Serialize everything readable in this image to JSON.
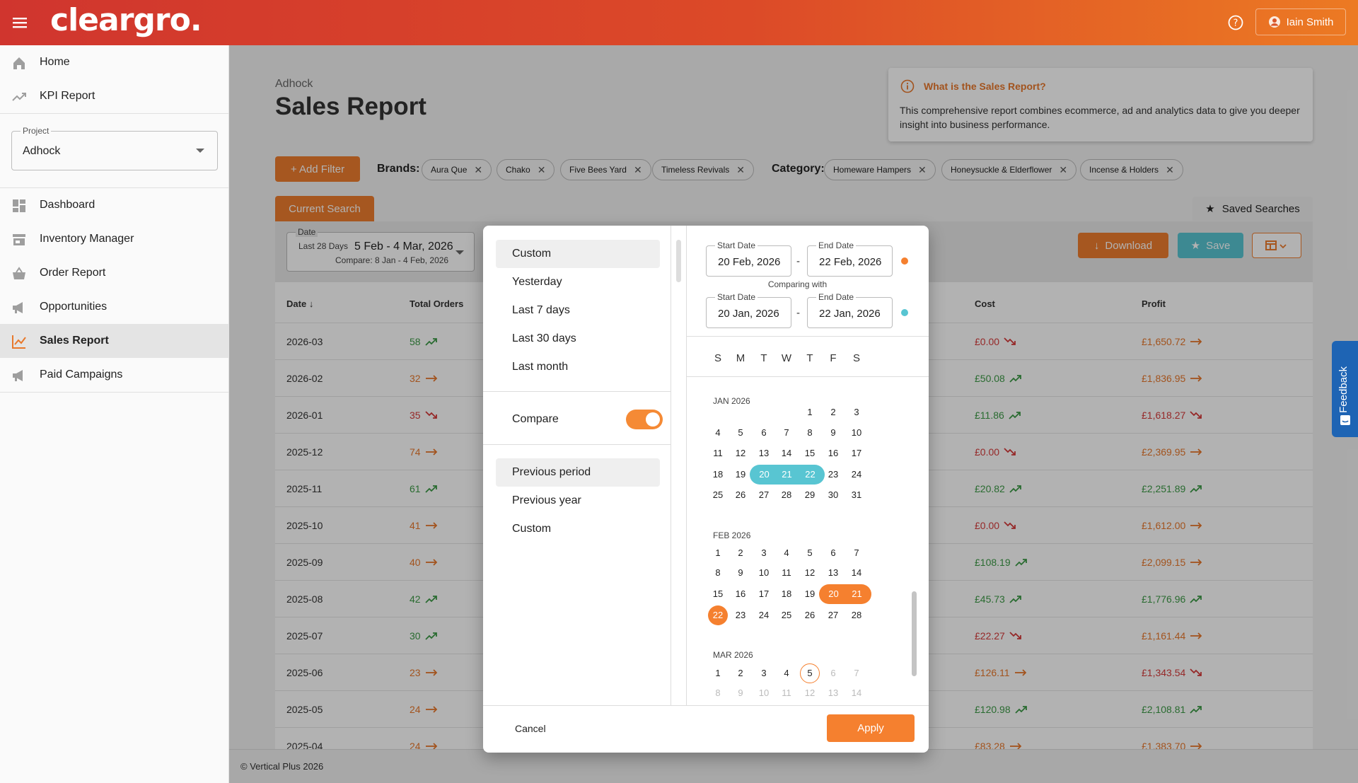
{
  "header": {
    "logo": "cleargro.",
    "user_name": "Iain Smith"
  },
  "sidebar": {
    "items_top": [
      {
        "label": "Home",
        "icon": "home-icon"
      },
      {
        "label": "KPI Report",
        "icon": "trending-up-icon"
      }
    ],
    "project": {
      "legend": "Project",
      "value": "Adhock"
    },
    "items": [
      {
        "label": "Dashboard",
        "icon": "dashboard-icon"
      },
      {
        "label": "Inventory Manager",
        "icon": "store-icon"
      },
      {
        "label": "Order Report",
        "icon": "basket-icon"
      },
      {
        "label": "Opportunities",
        "icon": "megaphone-icon"
      },
      {
        "label": "Sales Report",
        "icon": "chart-line-icon",
        "active": true
      },
      {
        "label": "Paid Campaigns",
        "icon": "megaphone-icon"
      }
    ]
  },
  "page": {
    "breadcrumb": "Adhock",
    "title": "Sales Report"
  },
  "info": {
    "title": "What is the Sales Report?",
    "text": "This comprehensive report combines ecommerce, ad and analytics data to give you deeper insight into business performance."
  },
  "filters": {
    "add_filter": "+ Add Filter",
    "brands_label": "Brands:",
    "brands": [
      "Aura Que",
      "Chako",
      "Five Bees Yard",
      "Timeless Revivals"
    ],
    "category_label": "Category:",
    "categories": [
      "Homeware Hampers",
      "Honeysuckle & Elderflower",
      "Incense & Holders"
    ]
  },
  "tabs": {
    "current": "Current Search",
    "saved": "Saved Searches"
  },
  "date_select": {
    "legend": "Date",
    "preset": "Last 28 Days",
    "range": "5 Feb - 4 Mar, 2026",
    "compare": "Compare: 8 Jan - 4 Feb, 2026"
  },
  "actions": {
    "download": "Download",
    "save": "Save"
  },
  "table": {
    "headers": {
      "date": "Date",
      "orders": "Total Orders",
      "cost": "Cost",
      "profit": "Profit"
    },
    "rows": [
      {
        "date": "2026-03",
        "orders": "58",
        "orders_trend": "up",
        "cost": "£0.00",
        "cost_trend": "down",
        "profit": "£1,650.72",
        "profit_trend": "flat"
      },
      {
        "date": "2026-02",
        "orders": "32",
        "orders_trend": "flat",
        "cost": "£50.08",
        "cost_trend": "up",
        "profit": "£1,836.95",
        "profit_trend": "flat"
      },
      {
        "date": "2026-01",
        "orders": "35",
        "orders_trend": "down",
        "cost": "£11.86",
        "cost_trend": "up",
        "profit": "£1,618.27",
        "profit_trend": "down"
      },
      {
        "date": "2025-12",
        "orders": "74",
        "orders_trend": "flat",
        "cost": "£0.00",
        "cost_trend": "down",
        "profit": "£2,369.95",
        "profit_trend": "flat"
      },
      {
        "date": "2025-11",
        "orders": "61",
        "orders_trend": "up",
        "cost": "£20.82",
        "cost_trend": "up",
        "profit": "£2,251.89",
        "profit_trend": "up"
      },
      {
        "date": "2025-10",
        "orders": "41",
        "orders_trend": "flat",
        "cost": "£0.00",
        "cost_trend": "down",
        "profit": "£1,612.00",
        "profit_trend": "flat"
      },
      {
        "date": "2025-09",
        "orders": "40",
        "orders_trend": "flat",
        "cost": "£108.19",
        "cost_trend": "up",
        "profit": "£2,099.15",
        "profit_trend": "flat"
      },
      {
        "date": "2025-08",
        "orders": "42",
        "orders_trend": "up",
        "cost": "£45.73",
        "cost_trend": "up",
        "profit": "£1,776.96",
        "profit_trend": "up"
      },
      {
        "date": "2025-07",
        "orders": "30",
        "orders_trend": "up",
        "cost": "£22.27",
        "cost_trend": "down",
        "profit": "£1,161.44",
        "profit_trend": "flat"
      },
      {
        "date": "2025-06",
        "orders": "23",
        "orders_trend": "flat",
        "cost": "£126.11",
        "cost_trend": "flat",
        "profit": "£1,343.54",
        "profit_trend": "down"
      },
      {
        "date": "2025-05",
        "orders": "24",
        "orders_trend": "flat",
        "cost": "£120.98",
        "cost_trend": "up",
        "profit": "£2,108.81",
        "profit_trend": "up"
      },
      {
        "date": "2025-04",
        "orders": "24",
        "orders_trend": "flat",
        "cost": "£83.28",
        "cost_trend": "flat",
        "profit": "£1,383.70",
        "profit_trend": "flat"
      }
    ]
  },
  "footer": "© Vertical Plus 2026",
  "feedback": "Feedback",
  "colors": {
    "up": "#3c9a46",
    "down": "#d63a3a",
    "flat": "#e8782b",
    "teal": "#58c5d2",
    "orange": "#f5802f"
  },
  "modal": {
    "presets": [
      "Custom",
      "Yesterday",
      "Last 7 days",
      "Last 30 days",
      "Last month"
    ],
    "compare_label": "Compare",
    "compare_on": true,
    "compare_options": [
      "Previous period",
      "Previous year",
      "Custom"
    ],
    "start_label": "Start Date",
    "end_label": "End Date",
    "start": "20 Feb, 2026",
    "end": "22 Feb, 2026",
    "comparing_with": "Comparing with",
    "cmp_start": "20 Jan, 2026",
    "cmp_end": "22 Jan, 2026",
    "dash": "-",
    "weekdays": [
      "S",
      "M",
      "T",
      "W",
      "T",
      "F",
      "S"
    ],
    "months": [
      {
        "label": "JAN 2026",
        "first_dow": 4,
        "days": 31
      },
      {
        "label": "FEB 2026",
        "first_dow": 0,
        "days": 28
      },
      {
        "label": "MAR 2026",
        "first_dow": 0,
        "days_shown": 14,
        "enabled_through": 5
      }
    ],
    "compare_range": {
      "month": 0,
      "from": 20,
      "to": 22
    },
    "selected_range": {
      "month": 1,
      "from": 20,
      "to": 22
    },
    "today": {
      "month": 2,
      "day": 5
    },
    "cancel": "Cancel",
    "apply": "Apply"
  }
}
